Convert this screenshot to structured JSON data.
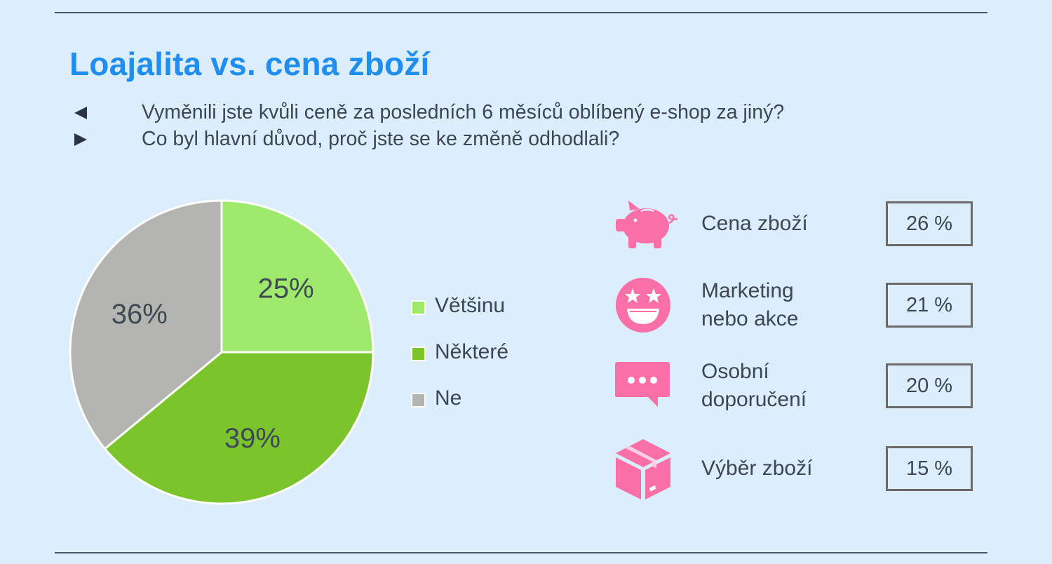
{
  "title": "Loajalita vs. cena zboží",
  "questions": [
    {
      "marker": "left-triangle",
      "text": "Vyměnili jste kvůli ceně za posledních 6 měsíců oblíbený e-shop za jiný?"
    },
    {
      "marker": "right-triangle",
      "text": "Co byl hlavní důvod, proč jste se ke změně odhodlali?"
    }
  ],
  "colors": {
    "background": "#dcedfb",
    "title": "#1f8ef0",
    "accent_pink": "#fb6fa7",
    "slice_vetsinu": "#9fe96c",
    "slice_nektere": "#7cc42c",
    "slice_ne": "#b4b4b0"
  },
  "chart_data": [
    {
      "type": "pie",
      "labels": [
        "Většinu",
        "Některé",
        "Ne"
      ],
      "values": [
        25,
        39,
        36
      ],
      "value_labels": [
        "25%",
        "39%",
        "36%"
      ],
      "legend_position": "right"
    },
    {
      "type": "table",
      "rows": [
        {
          "icon": "piggy-bank-icon",
          "label": "Cena zboží",
          "value": 26,
          "value_label": "26 %"
        },
        {
          "icon": "star-eyes-face-icon",
          "label": "Marketing nebo akce",
          "value": 21,
          "value_label": "21 %"
        },
        {
          "icon": "chat-bubble-icon",
          "label": "Osobní doporučení",
          "value": 20,
          "value_label": "20 %"
        },
        {
          "icon": "package-box-icon",
          "label": "Výběr zboží",
          "value": 15,
          "value_label": "15 %"
        }
      ]
    }
  ],
  "reasons": [
    {
      "line1": "Cena zboží",
      "line2": "",
      "value": "26 %"
    },
    {
      "line1": "Marketing",
      "line2": "nebo akce",
      "value": "21 %"
    },
    {
      "line1": "Osobní",
      "line2": "doporučení",
      "value": "20 %"
    },
    {
      "line1": "Výběr zboží",
      "line2": "",
      "value": "15 %"
    }
  ],
  "legend": [
    {
      "label": "Většinu"
    },
    {
      "label": "Některé"
    },
    {
      "label": "Ne"
    }
  ]
}
